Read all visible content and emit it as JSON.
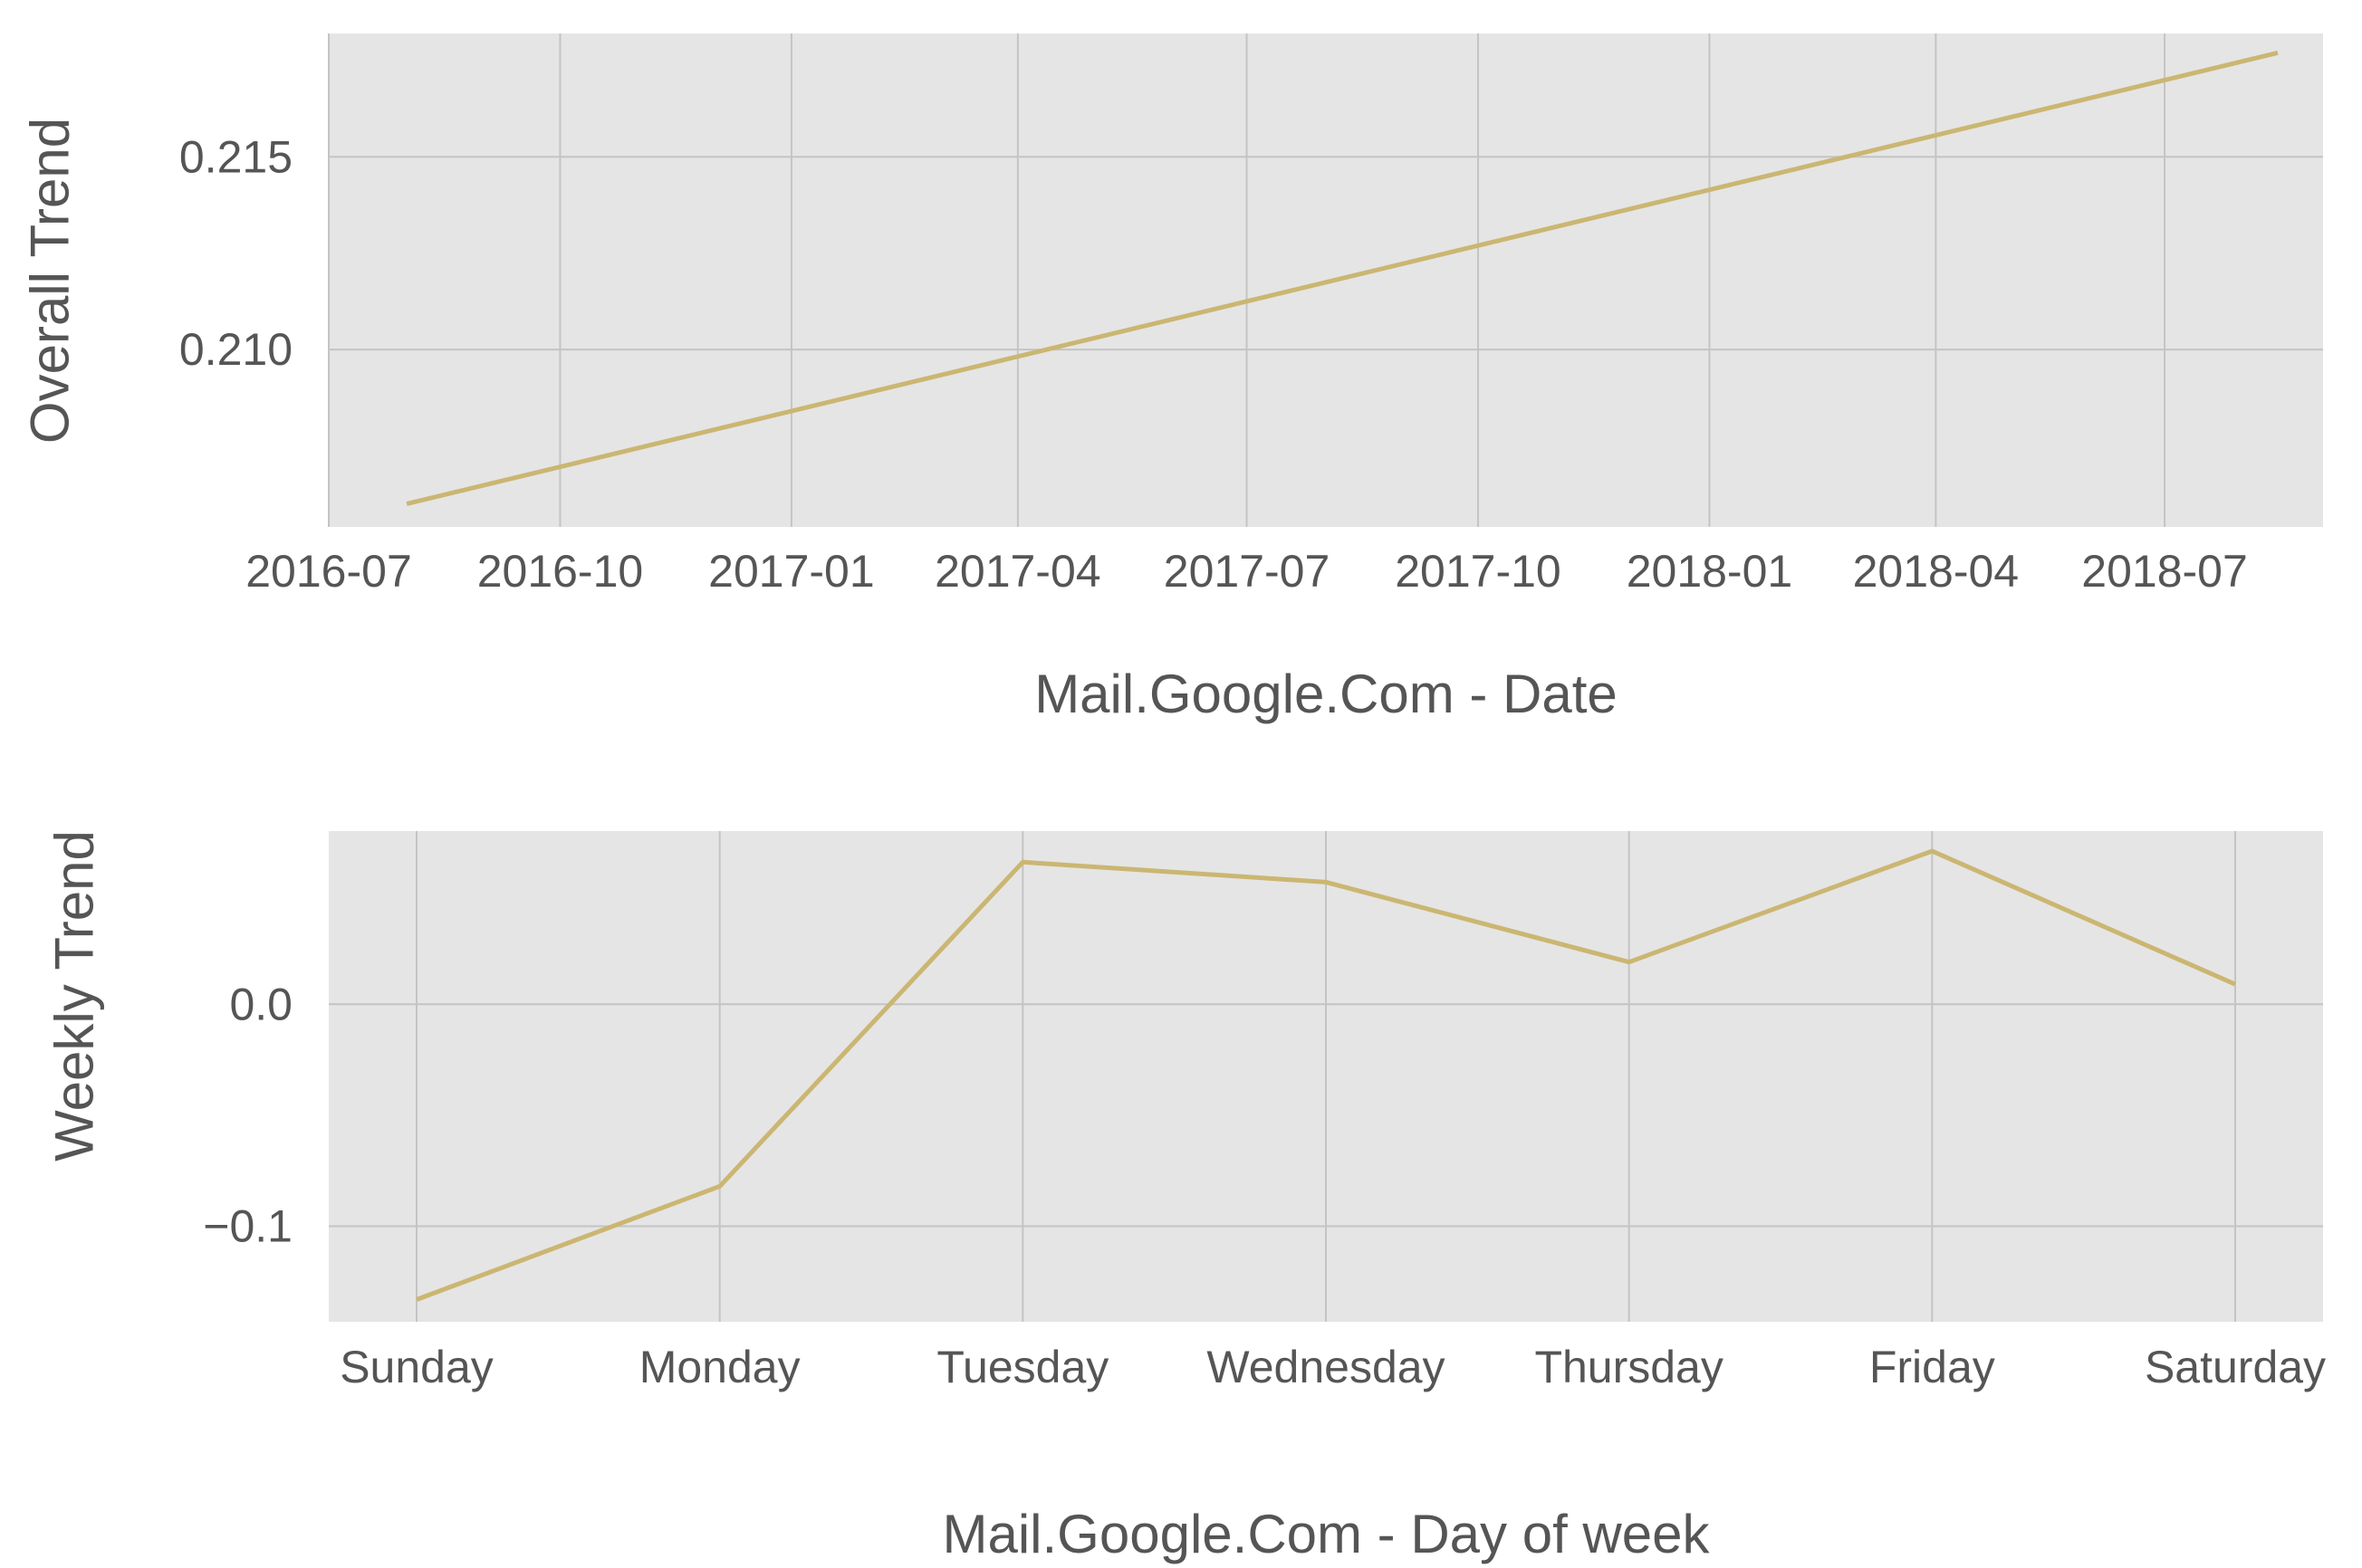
{
  "colors": {
    "background": "#ffffff",
    "plot_background": "#e5e5e5",
    "grid": "#c4c4c4",
    "line": "#cbb672",
    "text": "#555555"
  },
  "chart_data": [
    {
      "type": "line",
      "title": "",
      "xlabel": "Mail.Google.Com - Date",
      "ylabel": "Overall Trend",
      "x_scale": "date",
      "xlim": [
        "2016-07-01",
        "2018-09-02"
      ],
      "ylim": [
        0.2054,
        0.2182
      ],
      "x_ticks": [
        "2016-07-01",
        "2016-10-01",
        "2017-01-01",
        "2017-04-01",
        "2017-07-01",
        "2017-10-01",
        "2018-01-01",
        "2018-04-01",
        "2018-07-01"
      ],
      "x_tick_labels": [
        "2016-07",
        "2016-10",
        "2017-01",
        "2017-04",
        "2017-07",
        "2017-10",
        "2018-01",
        "2018-04",
        "2018-07"
      ],
      "y_ticks": [
        0.21,
        0.215
      ],
      "y_tick_labels": [
        "0.210",
        "0.215"
      ],
      "grid": true,
      "legend": "none",
      "series": [
        {
          "x": [
            "2016-08-01",
            "2018-08-15"
          ],
          "values": [
            0.206,
            0.2177
          ]
        }
      ]
    },
    {
      "type": "line",
      "title": "",
      "xlabel": "Mail.Google.Com - Day of week",
      "ylabel": "Weekly Trend",
      "categories": [
        "Sunday",
        "Monday",
        "Tuesday",
        "Wednesday",
        "Thursday",
        "Friday",
        "Saturday"
      ],
      "ylim": [
        -0.143,
        0.078
      ],
      "y_ticks": [
        -0.1,
        0.0
      ],
      "y_tick_labels": [
        "−0.1",
        "0.0"
      ],
      "grid": true,
      "legend": "none",
      "series": [
        {
          "values": [
            -0.133,
            -0.082,
            0.064,
            0.055,
            0.019,
            0.069,
            0.009
          ]
        }
      ]
    }
  ]
}
